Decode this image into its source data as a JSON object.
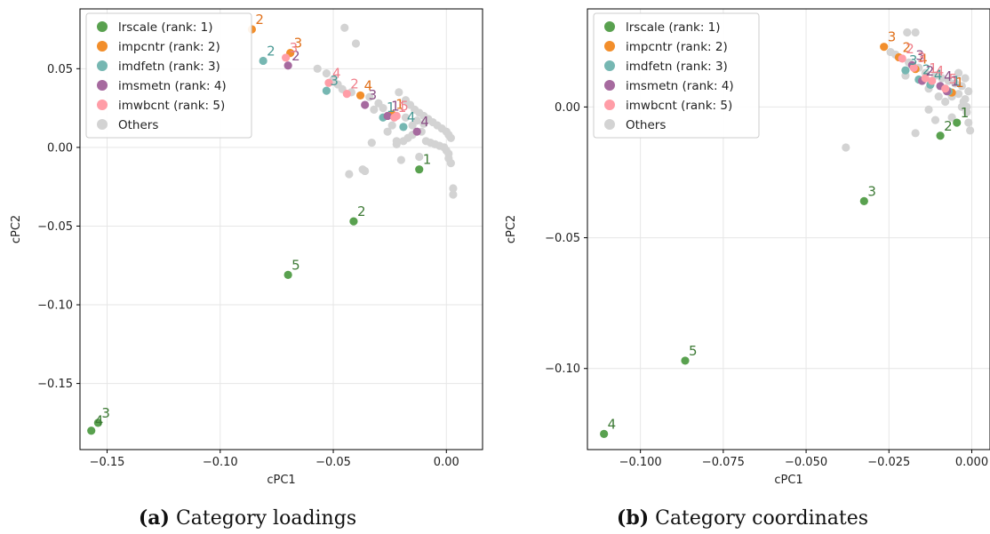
{
  "colors": {
    "lrscale": "#59a14f",
    "impcntr": "#f28e2b",
    "imdfetn": "#76b7b2",
    "imsmetn": "#a66a9f",
    "imwbcnt": "#ff9da7",
    "others": "#d3d3d3",
    "label_lrscale": "#3d7a35",
    "label_impcntr": "#e0701a",
    "label_imdfetn": "#4a9a95",
    "label_imsmetn": "#8a4f86",
    "label_imwbcnt": "#f0808c"
  },
  "legend": [
    {
      "key": "lrscale",
      "label": "lrscale (rank: 1)"
    },
    {
      "key": "impcntr",
      "label": "impcntr (rank: 2)"
    },
    {
      "key": "imdfetn",
      "label": "imdfetn (rank: 3)"
    },
    {
      "key": "imsmetn",
      "label": "imsmetn (rank: 4)"
    },
    {
      "key": "imwbcnt",
      "label": "imwbcnt (rank: 5)"
    },
    {
      "key": "others",
      "label": "Others"
    }
  ],
  "captions": {
    "a": {
      "tag": "(a)",
      "text": "Category loadings"
    },
    "b": {
      "tag": "(b)",
      "text": "Category coordinates"
    }
  },
  "chart_data": [
    {
      "type": "scatter",
      "xlabel": "cPC1",
      "ylabel": "cPC2",
      "xlim": [
        -0.162,
        0.016
      ],
      "ylim": [
        -0.192,
        0.088
      ],
      "xticks": [
        -0.15,
        -0.1,
        -0.05,
        0.0
      ],
      "xtick_labels": [
        "−0.15",
        "−0.10",
        "−0.05",
        "0.00"
      ],
      "yticks": [
        -0.15,
        -0.1,
        -0.05,
        0.0,
        0.05
      ],
      "ytick_labels": [
        "−0.15",
        "−0.10",
        "−0.05",
        "0.00",
        "0.05"
      ],
      "grid": true,
      "legend_position": "upper-left",
      "series": [
        {
          "key": "lrscale",
          "points": [
            {
              "x": -0.012,
              "y": -0.014,
              "label": "1"
            },
            {
              "x": -0.041,
              "y": -0.047,
              "label": "2"
            },
            {
              "x": -0.154,
              "y": -0.175,
              "label": "3"
            },
            {
              "x": -0.157,
              "y": -0.18,
              "label": "4"
            },
            {
              "x": -0.07,
              "y": -0.081,
              "label": "5"
            }
          ]
        },
        {
          "key": "impcntr",
          "points": [
            {
              "x": -0.024,
              "y": 0.021,
              "label": "1"
            },
            {
              "x": -0.086,
              "y": 0.075,
              "label": "2"
            },
            {
              "x": -0.069,
              "y": 0.06,
              "label": "3"
            },
            {
              "x": -0.038,
              "y": 0.033,
              "label": "4"
            }
          ]
        },
        {
          "key": "imdfetn",
          "points": [
            {
              "x": -0.028,
              "y": 0.019,
              "label": "1"
            },
            {
              "x": -0.081,
              "y": 0.055,
              "label": "2"
            },
            {
              "x": -0.053,
              "y": 0.036,
              "label": "3"
            },
            {
              "x": -0.019,
              "y": 0.013,
              "label": "4"
            }
          ]
        },
        {
          "key": "imsmetn",
          "points": [
            {
              "x": -0.026,
              "y": 0.02,
              "label": "1"
            },
            {
              "x": -0.07,
              "y": 0.052,
              "label": "2"
            },
            {
              "x": -0.036,
              "y": 0.027,
              "label": "3"
            },
            {
              "x": -0.013,
              "y": 0.01,
              "label": "4"
            }
          ]
        },
        {
          "key": "imwbcnt",
          "points": [
            {
              "x": -0.023,
              "y": 0.019,
              "label": "1"
            },
            {
              "x": -0.044,
              "y": 0.034,
              "label": "2"
            },
            {
              "x": -0.071,
              "y": 0.057,
              "label": "3"
            },
            {
              "x": -0.052,
              "y": 0.041,
              "label": "4"
            },
            {
              "x": -0.022,
              "y": 0.02,
              "label": "5"
            }
          ]
        },
        {
          "key": "others",
          "points": [
            {
              "x": -0.045,
              "y": 0.076
            },
            {
              "x": -0.04,
              "y": 0.066
            },
            {
              "x": -0.057,
              "y": 0.05
            },
            {
              "x": -0.053,
              "y": 0.047
            },
            {
              "x": -0.05,
              "y": 0.043
            },
            {
              "x": -0.048,
              "y": 0.04
            },
            {
              "x": -0.046,
              "y": 0.037
            },
            {
              "x": -0.042,
              "y": 0.035
            },
            {
              "x": -0.034,
              "y": 0.032
            },
            {
              "x": -0.03,
              "y": 0.028
            },
            {
              "x": -0.028,
              "y": 0.025
            },
            {
              "x": -0.021,
              "y": 0.035
            },
            {
              "x": -0.018,
              "y": 0.03
            },
            {
              "x": -0.016,
              "y": 0.027
            },
            {
              "x": -0.014,
              "y": 0.024
            },
            {
              "x": -0.012,
              "y": 0.022
            },
            {
              "x": -0.01,
              "y": 0.02
            },
            {
              "x": -0.008,
              "y": 0.018
            },
            {
              "x": -0.006,
              "y": 0.016
            },
            {
              "x": -0.004,
              "y": 0.014
            },
            {
              "x": -0.002,
              "y": 0.012
            },
            {
              "x": 0.0,
              "y": 0.01
            },
            {
              "x": 0.001,
              "y": 0.008
            },
            {
              "x": 0.002,
              "y": 0.006
            },
            {
              "x": -0.009,
              "y": 0.004
            },
            {
              "x": -0.007,
              "y": 0.003
            },
            {
              "x": -0.005,
              "y": 0.002
            },
            {
              "x": -0.003,
              "y": 0.001
            },
            {
              "x": -0.001,
              "y": 0.0
            },
            {
              "x": 0.0,
              "y": -0.002
            },
            {
              "x": 0.001,
              "y": -0.004
            },
            {
              "x": 0.001,
              "y": -0.007
            },
            {
              "x": 0.002,
              "y": -0.01
            },
            {
              "x": 0.003,
              "y": -0.026
            },
            {
              "x": 0.003,
              "y": -0.03
            },
            {
              "x": -0.011,
              "y": 0.01
            },
            {
              "x": -0.015,
              "y": 0.008
            },
            {
              "x": -0.017,
              "y": 0.006
            },
            {
              "x": -0.019,
              "y": 0.004
            },
            {
              "x": -0.022,
              "y": 0.002
            },
            {
              "x": -0.026,
              "y": 0.01
            },
            {
              "x": -0.032,
              "y": 0.024
            },
            {
              "x": -0.033,
              "y": 0.003
            },
            {
              "x": -0.036,
              "y": -0.015
            },
            {
              "x": -0.037,
              "y": -0.014
            },
            {
              "x": -0.043,
              "y": -0.017
            },
            {
              "x": -0.022,
              "y": 0.004
            },
            {
              "x": -0.02,
              "y": -0.008
            },
            {
              "x": -0.012,
              "y": -0.006
            },
            {
              "x": -0.01,
              "y": 0.015
            },
            {
              "x": -0.013,
              "y": 0.017
            },
            {
              "x": -0.015,
              "y": 0.014
            },
            {
              "x": -0.024,
              "y": 0.014
            },
            {
              "x": -0.018,
              "y": 0.019
            }
          ]
        }
      ]
    },
    {
      "type": "scatter",
      "xlabel": "cPC1",
      "ylabel": "cPC2",
      "xlim": [
        -0.116,
        0.0055
      ],
      "ylim": [
        -0.131,
        0.0375
      ],
      "xticks": [
        -0.1,
        -0.075,
        -0.05,
        -0.025,
        0.0
      ],
      "xtick_labels": [
        "−0.100",
        "−0.075",
        "−0.050",
        "−0.025",
        "0.000"
      ],
      "yticks": [
        -0.1,
        -0.05,
        0.0
      ],
      "ytick_labels": [
        "−0.10",
        "−0.05",
        "0.00"
      ],
      "grid": true,
      "legend_position": "upper-left",
      "series": [
        {
          "key": "lrscale",
          "points": [
            {
              "x": -0.0045,
              "y": -0.006,
              "label": "1"
            },
            {
              "x": -0.0095,
              "y": -0.011,
              "label": "2"
            },
            {
              "x": -0.0325,
              "y": -0.036,
              "label": "3"
            },
            {
              "x": -0.111,
              "y": -0.125,
              "label": "4"
            },
            {
              "x": -0.0865,
              "y": -0.097,
              "label": "5"
            }
          ]
        },
        {
          "key": "impcntr",
          "points": [
            {
              "x": -0.006,
              "y": 0.0055,
              "label": "1"
            },
            {
              "x": -0.022,
              "y": 0.019,
              "label": "2"
            },
            {
              "x": -0.0265,
              "y": 0.023,
              "label": "3"
            },
            {
              "x": -0.017,
              "y": 0.0145,
              "label": "4"
            }
          ]
        },
        {
          "key": "imdfetn",
          "points": [
            {
              "x": -0.007,
              "y": 0.006,
              "label": "1"
            },
            {
              "x": -0.016,
              "y": 0.0105,
              "label": "2"
            },
            {
              "x": -0.02,
              "y": 0.014,
              "label": "3"
            },
            {
              "x": -0.0125,
              "y": 0.0085,
              "label": "4"
            }
          ]
        },
        {
          "key": "imsmetn",
          "points": [
            {
              "x": -0.0075,
              "y": 0.006,
              "label": "1"
            },
            {
              "x": -0.015,
              "y": 0.01,
              "label": "2"
            },
            {
              "x": -0.018,
              "y": 0.016,
              "label": "3"
            },
            {
              "x": -0.0095,
              "y": 0.008,
              "label": "4"
            }
          ]
        },
        {
          "key": "imwbcnt",
          "points": [
            {
              "x": -0.014,
              "y": 0.011,
              "label": "1"
            },
            {
              "x": -0.021,
              "y": 0.0185,
              "label": "2"
            },
            {
              "x": -0.0175,
              "y": 0.015,
              "label": "3"
            },
            {
              "x": -0.012,
              "y": 0.01,
              "label": "4"
            },
            {
              "x": -0.008,
              "y": 0.007,
              "label": "5"
            }
          ]
        },
        {
          "key": "others",
          "points": [
            {
              "x": -0.0195,
              "y": 0.0285
            },
            {
              "x": -0.017,
              "y": 0.0285
            },
            {
              "x": -0.0245,
              "y": 0.021
            },
            {
              "x": -0.023,
              "y": 0.02
            },
            {
              "x": -0.019,
              "y": 0.017
            },
            {
              "x": -0.016,
              "y": 0.015
            },
            {
              "x": -0.014,
              "y": 0.013
            },
            {
              "x": -0.011,
              "y": 0.012
            },
            {
              "x": -0.009,
              "y": 0.011
            },
            {
              "x": -0.007,
              "y": 0.01
            },
            {
              "x": -0.005,
              "y": 0.009
            },
            {
              "x": -0.003,
              "y": 0.008
            },
            {
              "x": -0.004,
              "y": 0.013
            },
            {
              "x": -0.002,
              "y": 0.011
            },
            {
              "x": -0.001,
              "y": 0.006
            },
            {
              "x": -0.002,
              "y": 0.003
            },
            {
              "x": -0.003,
              "y": 0.0
            },
            {
              "x": -0.0015,
              "y": -0.002
            },
            {
              "x": -0.001,
              "y": -0.006
            },
            {
              "x": -0.0005,
              "y": -0.009
            },
            {
              "x": -0.006,
              "y": -0.004
            },
            {
              "x": -0.011,
              "y": -0.005
            },
            {
              "x": -0.013,
              "y": -0.001
            },
            {
              "x": -0.017,
              "y": -0.01
            },
            {
              "x": -0.038,
              "y": -0.0155
            },
            {
              "x": -0.008,
              "y": 0.002
            },
            {
              "x": -0.006,
              "y": 0.004
            },
            {
              "x": -0.01,
              "y": 0.004
            },
            {
              "x": -0.004,
              "y": 0.005
            },
            {
              "x": -0.0025,
              "y": 0.002
            },
            {
              "x": -0.0015,
              "y": 0.0
            },
            {
              "x": -0.013,
              "y": 0.007
            },
            {
              "x": -0.02,
              "y": 0.012
            }
          ]
        }
      ]
    }
  ]
}
